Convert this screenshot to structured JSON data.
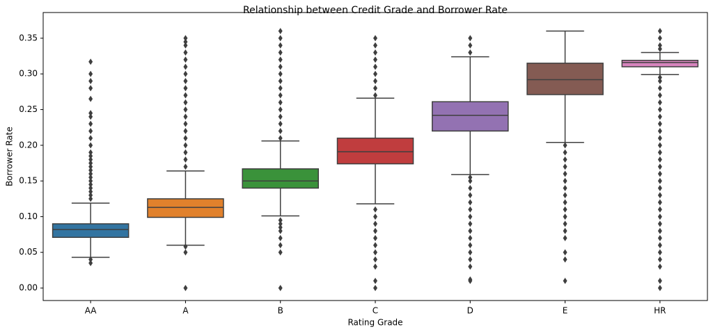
{
  "chart_data": {
    "type": "box",
    "title": "Relationship between Credit Grade and Borrower Rate",
    "x_label": "Rating Grade",
    "y_label": "Borrower Rate",
    "categories": [
      "AA",
      "A",
      "B",
      "C",
      "D",
      "E",
      "HR"
    ],
    "colors": [
      "#3274a1",
      "#e1812c",
      "#3a923a",
      "#c03d3e",
      "#9372b2",
      "#845b53",
      "#d684bd"
    ],
    "boxes": [
      {
        "whislo": 0.043,
        "q1": 0.071,
        "med": 0.082,
        "q3": 0.09,
        "whishi": 0.119,
        "fliers": [
          0.035,
          0.04,
          0.125,
          0.13,
          0.135,
          0.14,
          0.145,
          0.15,
          0.155,
          0.16,
          0.165,
          0.17,
          0.175,
          0.18,
          0.185,
          0.19,
          0.2,
          0.21,
          0.22,
          0.23,
          0.24,
          0.245,
          0.265,
          0.28,
          0.29,
          0.3,
          0.317
        ]
      },
      {
        "whislo": 0.06,
        "q1": 0.099,
        "med": 0.113,
        "q3": 0.125,
        "whishi": 0.164,
        "fliers": [
          0,
          0.05,
          0.058,
          0.17,
          0.18,
          0.19,
          0.2,
          0.21,
          0.22,
          0.23,
          0.24,
          0.25,
          0.26,
          0.27,
          0.28,
          0.29,
          0.3,
          0.31,
          0.32,
          0.33,
          0.34,
          0.345,
          0.35
        ]
      },
      {
        "whislo": 0.101,
        "q1": 0.14,
        "med": 0.15,
        "q3": 0.167,
        "whishi": 0.206,
        "fliers": [
          0,
          0.05,
          0.06,
          0.07,
          0.08,
          0.085,
          0.09,
          0.095,
          0.21,
          0.22,
          0.23,
          0.24,
          0.25,
          0.26,
          0.27,
          0.28,
          0.29,
          0.3,
          0.31,
          0.32,
          0.33,
          0.34,
          0.35,
          0.36
        ]
      },
      {
        "whislo": 0.118,
        "q1": 0.174,
        "med": 0.191,
        "q3": 0.21,
        "whishi": 0.266,
        "fliers": [
          0,
          0.01,
          0.03,
          0.04,
          0.05,
          0.06,
          0.07,
          0.08,
          0.09,
          0.1,
          0.11,
          0.27,
          0.28,
          0.29,
          0.3,
          0.31,
          0.32,
          0.33,
          0.34,
          0.35
        ]
      },
      {
        "whislo": 0.159,
        "q1": 0.22,
        "med": 0.242,
        "q3": 0.261,
        "whishi": 0.324,
        "fliers": [
          0.01,
          0.012,
          0.03,
          0.04,
          0.05,
          0.06,
          0.07,
          0.08,
          0.09,
          0.1,
          0.11,
          0.12,
          0.13,
          0.14,
          0.15,
          0.155,
          0.33,
          0.34,
          0.35
        ]
      },
      {
        "whislo": 0.204,
        "q1": 0.271,
        "med": 0.292,
        "q3": 0.315,
        "whishi": 0.36,
        "fliers": [
          0.01,
          0.04,
          0.05,
          0.07,
          0.08,
          0.09,
          0.1,
          0.11,
          0.12,
          0.13,
          0.14,
          0.15,
          0.16,
          0.17,
          0.18,
          0.19,
          0.2
        ]
      },
      {
        "whislo": 0.299,
        "q1": 0.31,
        "med": 0.316,
        "q3": 0.319,
        "whishi": 0.33,
        "fliers": [
          0,
          0.01,
          0.03,
          0.04,
          0.05,
          0.06,
          0.07,
          0.08,
          0.09,
          0.1,
          0.11,
          0.12,
          0.13,
          0.14,
          0.15,
          0.16,
          0.17,
          0.18,
          0.19,
          0.2,
          0.21,
          0.22,
          0.23,
          0.24,
          0.25,
          0.26,
          0.27,
          0.28,
          0.29,
          0.295,
          0.335,
          0.34,
          0.35,
          0.36
        ]
      }
    ],
    "ylim": [
      -0.0175,
      0.386
    ],
    "yticks": [
      {
        "value": 0,
        "label": "0.00"
      },
      0.05,
      {
        "value": 0.1,
        "label": "0.10"
      },
      0.15,
      {
        "value": 0.2,
        "label": "0.20"
      },
      0.25,
      {
        "value": 0.3,
        "label": "0.30"
      },
      0.35
    ]
  }
}
